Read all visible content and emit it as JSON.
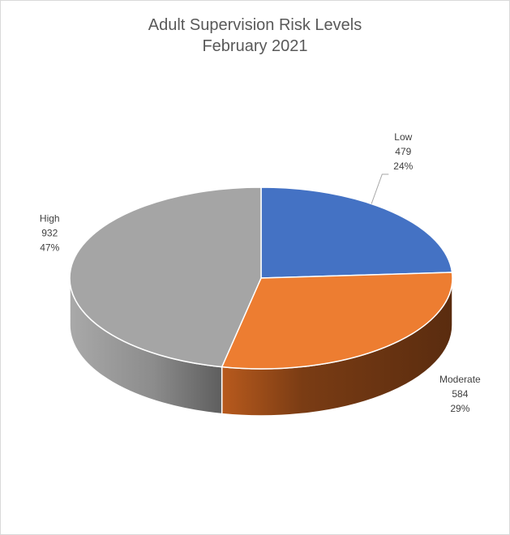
{
  "chart_data": {
    "type": "pie",
    "style": "3d",
    "title_line1": "Adult Supervision Risk Levels",
    "title_line2": "February 2021",
    "slices": [
      {
        "name": "Low",
        "value": 479,
        "percent": "24%",
        "color": "#4472C4"
      },
      {
        "name": "Moderate",
        "value": 584,
        "percent": "29%",
        "color": "#ED7D31"
      },
      {
        "name": "High",
        "value": 932,
        "percent": "47%",
        "color": "#A5A5A5"
      }
    ]
  }
}
